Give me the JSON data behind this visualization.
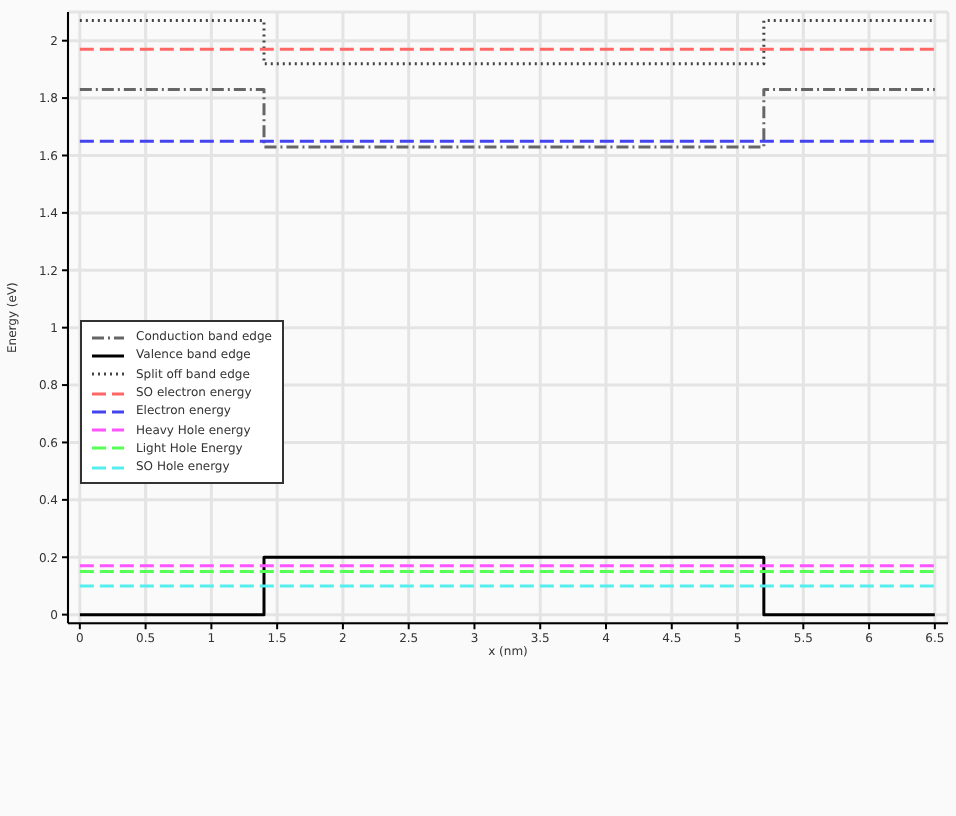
{
  "chart_data": {
    "type": "line",
    "xlabel": "x (nm)",
    "ylabel": "Energy (eV)",
    "xlim": [
      -0.09,
      6.6
    ],
    "ylim": [
      -0.03,
      2.1
    ],
    "xticks": [
      0,
      0.5,
      1,
      1.5,
      2,
      2.5,
      3,
      3.5,
      4,
      4.5,
      5,
      5.5,
      6,
      6.5
    ],
    "yticks": [
      0,
      0.2,
      0.4,
      0.6,
      0.8,
      1,
      1.2,
      1.4,
      1.6,
      1.8,
      2
    ],
    "grid": true,
    "legend": "left",
    "marker": "none",
    "series": [
      {
        "name": "Conduction band edge",
        "color": "#666666",
        "line_style": "dashdot",
        "x": [
          0,
          1.4,
          1.4,
          5.2,
          5.2,
          6.5
        ],
        "values": [
          1.83,
          1.83,
          1.63,
          1.63,
          1.83,
          1.83
        ]
      },
      {
        "name": "Valence band edge",
        "color": "#000000",
        "line_style": "solid",
        "x": [
          0,
          1.4,
          1.4,
          5.2,
          5.2,
          6.5
        ],
        "values": [
          0,
          0,
          0.2,
          0.2,
          0,
          0
        ]
      },
      {
        "name": "Split off band edge",
        "color": "#444444",
        "line_style": "dotted",
        "x": [
          0,
          1.4,
          1.4,
          5.2,
          5.2,
          6.5
        ],
        "values": [
          2.07,
          2.07,
          1.92,
          1.92,
          2.07,
          2.07
        ]
      },
      {
        "name": "SO electron energy",
        "color": "#ff6666",
        "line_style": "dashed",
        "x": [
          0,
          6.5
        ],
        "values": [
          1.97,
          1.97
        ]
      },
      {
        "name": "Electron energy",
        "color": "#4444ee",
        "line_style": "dashed",
        "x": [
          0,
          6.5
        ],
        "values": [
          1.65,
          1.65
        ]
      },
      {
        "name": "Heavy Hole energy",
        "color": "#ff55ff",
        "line_style": "dashed",
        "x": [
          0,
          6.5
        ],
        "values": [
          0.17,
          0.17
        ]
      },
      {
        "name": "Light Hole Energy",
        "color": "#55ff55",
        "line_style": "dashed",
        "x": [
          0,
          6.5
        ],
        "values": [
          0.15,
          0.15
        ]
      },
      {
        "name": "SO Hole energy",
        "color": "#55eeee",
        "line_style": "dashed",
        "x": [
          0,
          6.5
        ],
        "values": [
          0.1,
          0.1
        ]
      }
    ]
  }
}
